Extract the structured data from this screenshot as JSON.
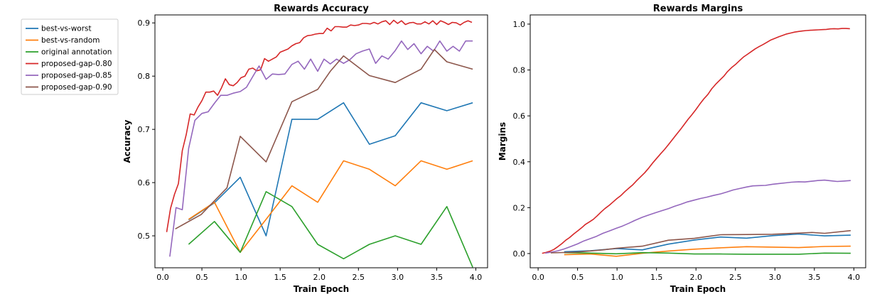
{
  "colors": {
    "best-vs-worst": "#1f77b4",
    "best-vs-random": "#ff7f0e",
    "original annotation": "#2ca02c",
    "proposed-gap-0.80": "#d62728",
    "proposed-gap-0.85": "#9467bd",
    "proposed-gap-0.90": "#8c564b"
  },
  "legend": {
    "placement": "outside-left-top",
    "entries": [
      "best-vs-worst",
      "best-vs-random",
      "original annotation",
      "proposed-gap-0.80",
      "proposed-gap-0.85",
      "proposed-gap-0.90"
    ]
  },
  "chart_data": [
    {
      "type": "line",
      "title": "Rewards Accuracy",
      "xlabel": "Train Epoch",
      "ylabel": "Accuracy",
      "xlim": [
        -0.1,
        4.15
      ],
      "ylim": [
        0.44,
        0.915
      ],
      "xticks": [
        "0.0",
        "0.5",
        "1.0",
        "1.5",
        "2.0",
        "2.5",
        "3.0",
        "3.5",
        "4.0"
      ],
      "yticks": [
        "0.5",
        "0.6",
        "0.7",
        "0.8",
        "0.9"
      ],
      "grid": false,
      "series": [
        {
          "name": "best-vs-worst",
          "x": [
            0.33,
            0.66,
            0.99,
            1.32,
            1.65,
            1.98,
            2.31,
            2.64,
            2.97,
            3.3,
            3.63,
            3.96
          ],
          "y": [
            0.53,
            0.562,
            0.61,
            0.5,
            0.719,
            0.719,
            0.75,
            0.672,
            0.688,
            0.75,
            0.735,
            0.75
          ]
        },
        {
          "name": "best-vs-random",
          "x": [
            0.33,
            0.66,
            0.99,
            1.32,
            1.65,
            1.98,
            2.31,
            2.64,
            2.97,
            3.3,
            3.63,
            3.96
          ],
          "y": [
            0.531,
            0.563,
            0.469,
            0.531,
            0.594,
            0.563,
            0.641,
            0.625,
            0.594,
            0.641,
            0.625,
            0.641
          ]
        },
        {
          "name": "original annotation",
          "x": [
            0.33,
            0.66,
            0.99,
            1.32,
            1.65,
            1.98,
            2.31,
            2.64,
            2.97,
            3.3,
            3.63,
            3.96
          ],
          "y": [
            0.484,
            0.527,
            0.469,
            0.583,
            0.555,
            0.484,
            0.457,
            0.484,
            0.5,
            0.484,
            0.555,
            0.441
          ]
        },
        {
          "name": "proposed-gap-0.80",
          "x": [
            0.05,
            0.1,
            0.15,
            0.2,
            0.25,
            0.3,
            0.35,
            0.4,
            0.45,
            0.5,
            0.55,
            0.6,
            0.65,
            0.7,
            0.75,
            0.8,
            0.85,
            0.9,
            0.95,
            1.0,
            1.05,
            1.1,
            1.15,
            1.2,
            1.25,
            1.3,
            1.35,
            1.4,
            1.45,
            1.5,
            1.55,
            1.6,
            1.65,
            1.7,
            1.75,
            1.8,
            1.85,
            1.9,
            1.95,
            2.0,
            2.05,
            2.1,
            2.15,
            2.2,
            2.25,
            2.3,
            2.35,
            2.4,
            2.45,
            2.5,
            2.55,
            2.6,
            2.65,
            2.7,
            2.75,
            2.8,
            2.85,
            2.9,
            2.95,
            3.0,
            3.05,
            3.1,
            3.15,
            3.2,
            3.25,
            3.3,
            3.35,
            3.4,
            3.45,
            3.5,
            3.55,
            3.6,
            3.65,
            3.7,
            3.75,
            3.8,
            3.85,
            3.9,
            3.95
          ],
          "y": [
            0.507,
            0.552,
            0.578,
            0.598,
            0.66,
            0.69,
            0.729,
            0.727,
            0.742,
            0.754,
            0.77,
            0.77,
            0.772,
            0.764,
            0.778,
            0.795,
            0.784,
            0.782,
            0.788,
            0.797,
            0.8,
            0.813,
            0.815,
            0.81,
            0.812,
            0.833,
            0.828,
            0.832,
            0.836,
            0.845,
            0.848,
            0.851,
            0.857,
            0.861,
            0.863,
            0.872,
            0.876,
            0.877,
            0.879,
            0.88,
            0.88,
            0.89,
            0.885,
            0.893,
            0.893,
            0.892,
            0.892,
            0.896,
            0.895,
            0.896,
            0.899,
            0.899,
            0.898,
            0.901,
            0.898,
            0.902,
            0.904,
            0.897,
            0.905,
            0.899,
            0.904,
            0.897,
            0.9,
            0.901,
            0.898,
            0.898,
            0.902,
            0.898,
            0.904,
            0.897,
            0.904,
            0.901,
            0.897,
            0.901,
            0.9,
            0.896,
            0.901,
            0.904,
            0.901
          ]
        },
        {
          "name": "proposed-gap-0.85",
          "x": [
            0.09,
            0.17,
            0.25,
            0.33,
            0.41,
            0.5,
            0.58,
            0.66,
            0.74,
            0.82,
            0.9,
            0.99,
            1.07,
            1.15,
            1.23,
            1.32,
            1.4,
            1.48,
            1.56,
            1.65,
            1.73,
            1.81,
            1.89,
            1.98,
            2.06,
            2.14,
            2.22,
            2.31,
            2.39,
            2.47,
            2.55,
            2.64,
            2.72,
            2.8,
            2.88,
            2.97,
            3.05,
            3.13,
            3.21,
            3.3,
            3.38,
            3.46,
            3.54,
            3.63,
            3.71,
            3.79,
            3.87,
            3.96
          ],
          "y": [
            0.461,
            0.553,
            0.549,
            0.664,
            0.717,
            0.73,
            0.733,
            0.749,
            0.764,
            0.764,
            0.768,
            0.771,
            0.779,
            0.799,
            0.819,
            0.794,
            0.804,
            0.803,
            0.804,
            0.822,
            0.828,
            0.813,
            0.832,
            0.809,
            0.832,
            0.823,
            0.832,
            0.824,
            0.831,
            0.842,
            0.847,
            0.851,
            0.824,
            0.838,
            0.832,
            0.848,
            0.866,
            0.85,
            0.861,
            0.842,
            0.856,
            0.847,
            0.866,
            0.847,
            0.856,
            0.847,
            0.866,
            0.866
          ]
        },
        {
          "name": "proposed-gap-0.90",
          "x": [
            0.16,
            0.49,
            0.82,
            0.99,
            1.32,
            1.65,
            1.98,
            2.14,
            2.31,
            2.64,
            2.97,
            3.3,
            3.47,
            3.63,
            3.96
          ],
          "y": [
            0.513,
            0.54,
            0.59,
            0.687,
            0.639,
            0.752,
            0.775,
            0.809,
            0.838,
            0.801,
            0.788,
            0.813,
            0.85,
            0.827,
            0.813
          ]
        }
      ]
    },
    {
      "type": "line",
      "title": "Rewards Margins",
      "xlabel": "Train Epoch",
      "ylabel": "Margins",
      "xlim": [
        -0.1,
        4.15
      ],
      "ylim": [
        -0.062,
        1.04
      ],
      "xticks": [
        "0.0",
        "0.5",
        "1.0",
        "1.5",
        "2.0",
        "2.5",
        "3.0",
        "3.5",
        "4.0"
      ],
      "yticks": [
        "0.0",
        "0.2",
        "0.4",
        "0.6",
        "0.8",
        "1.0"
      ],
      "grid": false,
      "series": [
        {
          "name": "best-vs-worst",
          "x": [
            0.33,
            0.66,
            0.99,
            1.32,
            1.65,
            1.98,
            2.31,
            2.64,
            2.97,
            3.3,
            3.63,
            3.96
          ],
          "y": [
            0.008,
            0.012,
            0.022,
            0.016,
            0.041,
            0.059,
            0.072,
            0.067,
            0.078,
            0.085,
            0.077,
            0.08
          ]
        },
        {
          "name": "best-vs-random",
          "x": [
            0.33,
            0.66,
            0.99,
            1.32,
            1.65,
            1.98,
            2.31,
            2.64,
            2.97,
            3.3,
            3.63,
            3.96
          ],
          "y": [
            -0.005,
            -0.002,
            -0.012,
            0.001,
            0.011,
            0.019,
            0.025,
            0.03,
            0.028,
            0.026,
            0.031,
            0.032
          ]
        },
        {
          "name": "original annotation",
          "x": [
            0.33,
            0.66,
            0.99,
            1.32,
            1.65,
            1.98,
            2.31,
            2.64,
            2.97,
            3.3,
            3.63,
            3.96
          ],
          "y": [
            0.004,
            0.002,
            -0.001,
            0.004,
            0.002,
            -0.002,
            -0.002,
            -0.003,
            -0.003,
            -0.003,
            0.002,
            0.001
          ]
        },
        {
          "name": "proposed-gap-0.80",
          "x": [
            0.05,
            0.1,
            0.15,
            0.2,
            0.25,
            0.3,
            0.35,
            0.4,
            0.45,
            0.5,
            0.55,
            0.6,
            0.65,
            0.7,
            0.75,
            0.8,
            0.85,
            0.9,
            0.95,
            1.0,
            1.05,
            1.1,
            1.15,
            1.2,
            1.25,
            1.3,
            1.35,
            1.4,
            1.45,
            1.5,
            1.55,
            1.6,
            1.65,
            1.7,
            1.75,
            1.8,
            1.85,
            1.9,
            1.95,
            2.0,
            2.05,
            2.1,
            2.15,
            2.2,
            2.25,
            2.3,
            2.35,
            2.4,
            2.45,
            2.5,
            2.55,
            2.6,
            2.65,
            2.7,
            2.75,
            2.8,
            2.85,
            2.9,
            2.95,
            3.0,
            3.05,
            3.1,
            3.15,
            3.2,
            3.25,
            3.3,
            3.35,
            3.4,
            3.45,
            3.5,
            3.55,
            3.6,
            3.65,
            3.7,
            3.75,
            3.8,
            3.85,
            3.9,
            3.95
          ],
          "y": [
            0.001,
            0.005,
            0.01,
            0.018,
            0.03,
            0.043,
            0.058,
            0.07,
            0.085,
            0.098,
            0.112,
            0.127,
            0.138,
            0.149,
            0.165,
            0.182,
            0.197,
            0.21,
            0.225,
            0.24,
            0.253,
            0.27,
            0.285,
            0.3,
            0.318,
            0.335,
            0.352,
            0.372,
            0.394,
            0.414,
            0.434,
            0.453,
            0.474,
            0.496,
            0.518,
            0.539,
            0.562,
            0.585,
            0.606,
            0.628,
            0.652,
            0.674,
            0.693,
            0.718,
            0.738,
            0.755,
            0.772,
            0.793,
            0.81,
            0.824,
            0.84,
            0.856,
            0.868,
            0.88,
            0.892,
            0.902,
            0.911,
            0.921,
            0.931,
            0.938,
            0.945,
            0.951,
            0.957,
            0.961,
            0.965,
            0.968,
            0.97,
            0.972,
            0.973,
            0.974,
            0.975,
            0.976,
            0.977,
            0.979,
            0.98,
            0.979,
            0.981,
            0.981,
            0.98
          ]
        },
        {
          "name": "proposed-gap-0.85",
          "x": [
            0.09,
            0.17,
            0.25,
            0.33,
            0.41,
            0.5,
            0.58,
            0.66,
            0.74,
            0.82,
            0.9,
            0.99,
            1.07,
            1.15,
            1.23,
            1.32,
            1.4,
            1.48,
            1.56,
            1.65,
            1.73,
            1.81,
            1.89,
            1.98,
            2.06,
            2.14,
            2.22,
            2.31,
            2.39,
            2.47,
            2.55,
            2.64,
            2.72,
            2.8,
            2.88,
            2.97,
            3.05,
            3.13,
            3.21,
            3.3,
            3.38,
            3.46,
            3.54,
            3.63,
            3.71,
            3.79,
            3.87,
            3.96
          ],
          "y": [
            0.002,
            0.006,
            0.012,
            0.02,
            0.03,
            0.042,
            0.055,
            0.065,
            0.075,
            0.088,
            0.098,
            0.11,
            0.12,
            0.132,
            0.145,
            0.158,
            0.168,
            0.177,
            0.186,
            0.196,
            0.206,
            0.215,
            0.225,
            0.233,
            0.24,
            0.246,
            0.253,
            0.26,
            0.268,
            0.277,
            0.283,
            0.29,
            0.295,
            0.296,
            0.297,
            0.302,
            0.305,
            0.308,
            0.311,
            0.313,
            0.312,
            0.315,
            0.318,
            0.32,
            0.317,
            0.314,
            0.316,
            0.318
          ]
        },
        {
          "name": "proposed-gap-0.90",
          "x": [
            0.16,
            0.49,
            0.82,
            0.99,
            1.32,
            1.65,
            1.98,
            2.14,
            2.31,
            2.64,
            2.97,
            3.3,
            3.47,
            3.63,
            3.96
          ],
          "y": [
            0.003,
            0.006,
            0.016,
            0.023,
            0.032,
            0.058,
            0.066,
            0.074,
            0.082,
            0.083,
            0.084,
            0.089,
            0.092,
            0.088,
            0.1
          ]
        }
      ]
    }
  ]
}
